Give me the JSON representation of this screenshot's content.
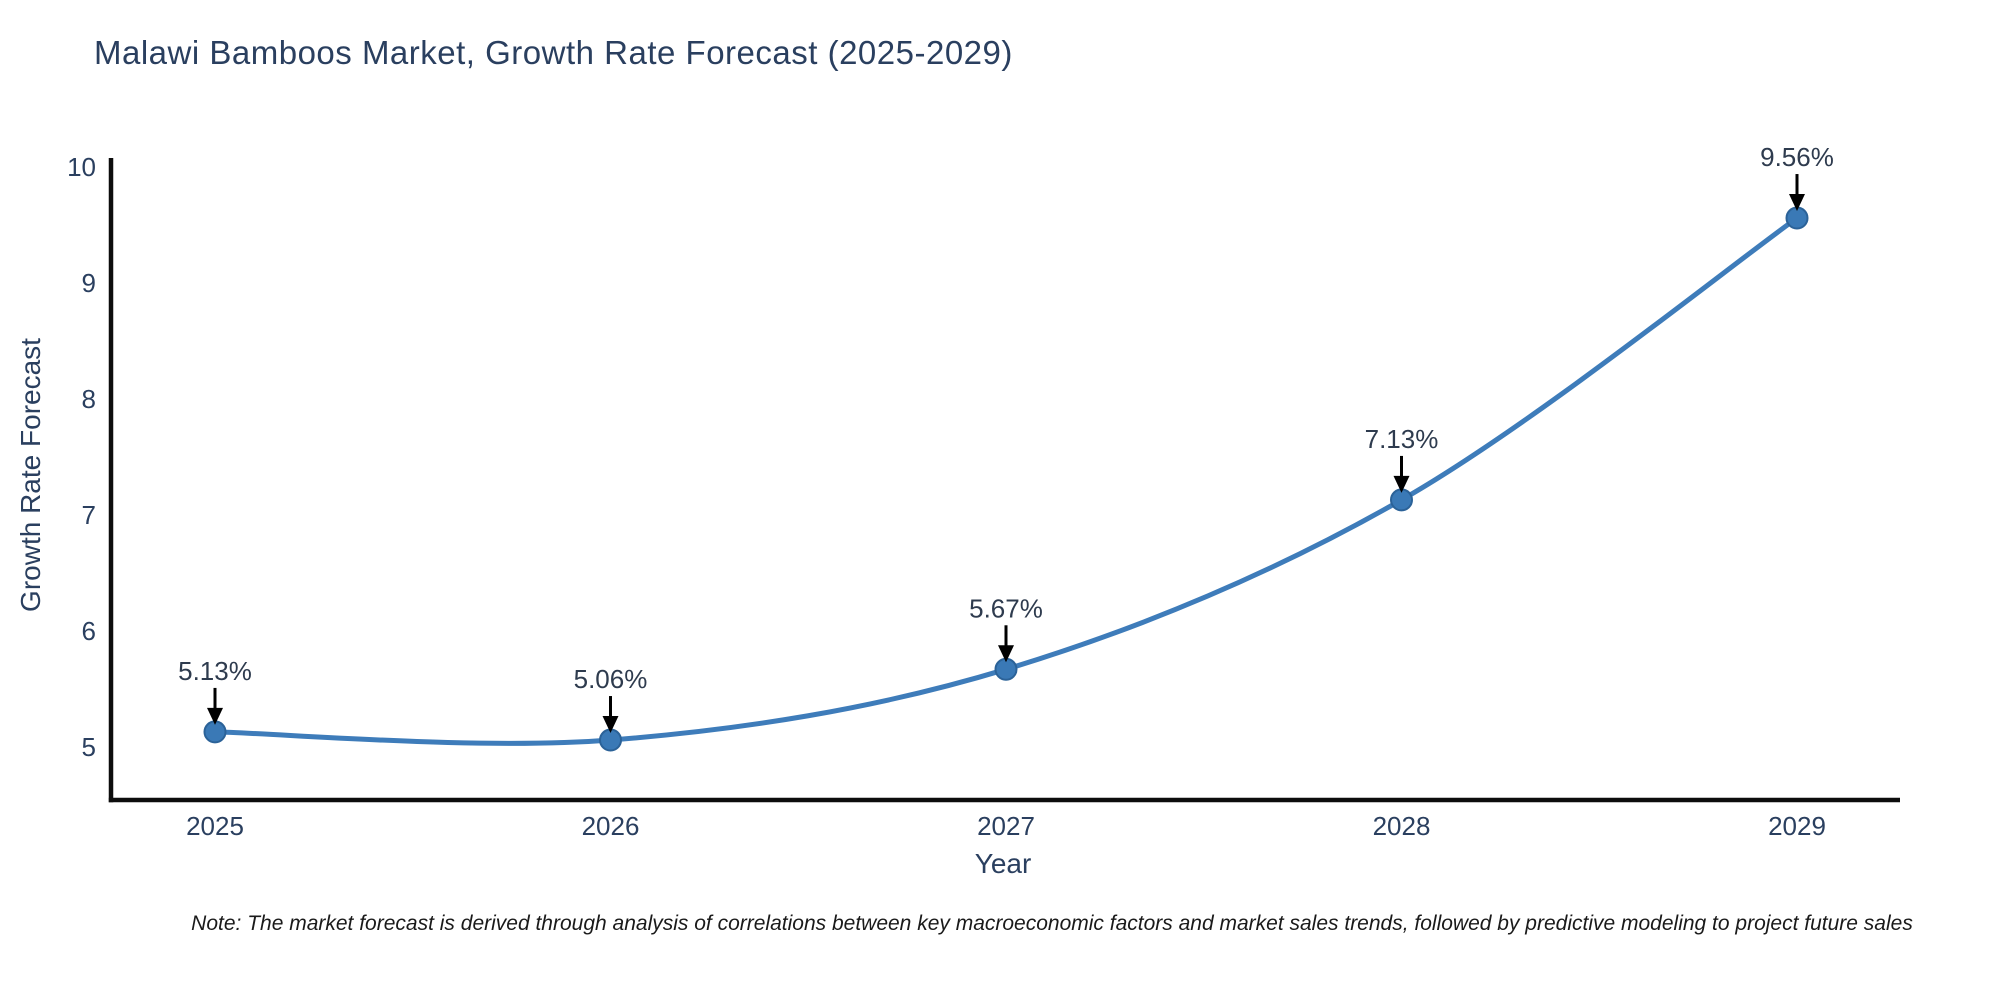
{
  "chart_data": {
    "type": "line",
    "title": "Malawi Bamboos Market, Growth Rate Forecast (2025-2029)",
    "xlabel": "Year",
    "ylabel": "Growth Rate Forecast",
    "categories": [
      2025,
      2026,
      2027,
      2028,
      2029
    ],
    "values": [
      5.13,
      5.06,
      5.67,
      7.13,
      9.56
    ],
    "point_labels": [
      "5.13%",
      "5.06%",
      "5.67%",
      "7.13%",
      "9.56%"
    ],
    "yticks": [
      5,
      6,
      7,
      8,
      9,
      10
    ],
    "ylim": [
      4.55,
      10.05
    ],
    "grid": false,
    "legend": "none",
    "line_shape": "spline",
    "note": "Note: The market forecast is derived through analysis of correlations between key macroeconomic factors and market sales trends, followed by predictive modeling to project future sales",
    "colors": {
      "line": "#3e7cba",
      "marker": "#3a79b6",
      "marker_edge": "#2b6298",
      "axis": "#0d0d0d",
      "text": "#2a3f5f",
      "annotation_text": "#2e3b4e",
      "arrow": "#000000",
      "note_text": "#1a1a1a",
      "background": "#ffffff"
    }
  }
}
